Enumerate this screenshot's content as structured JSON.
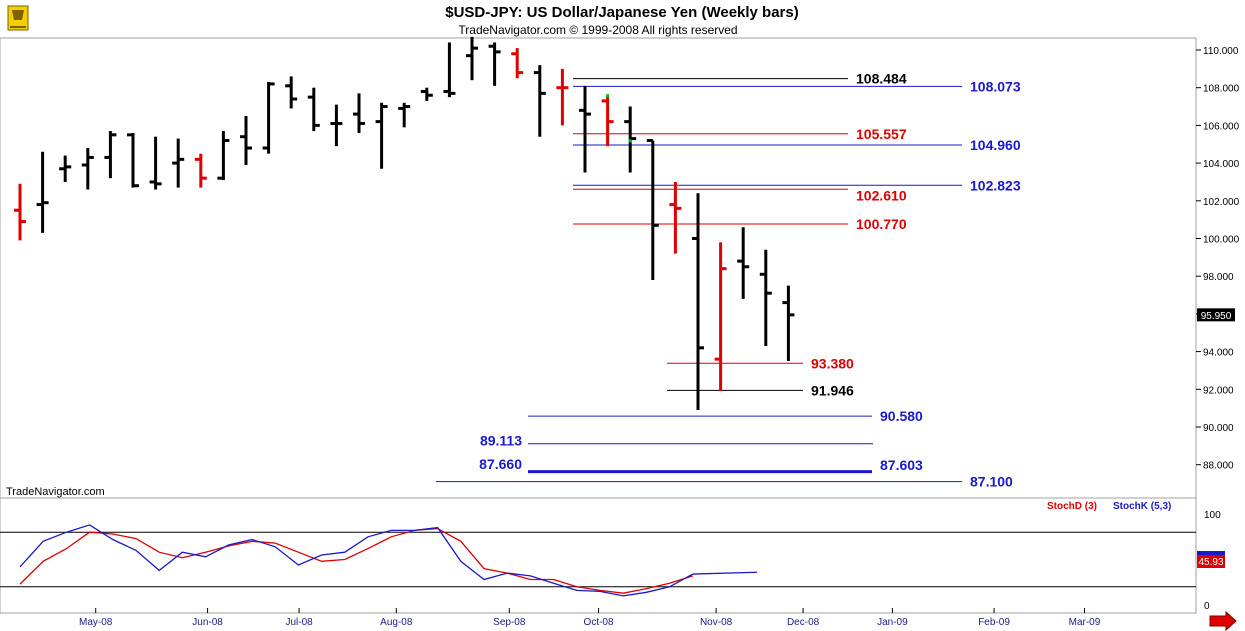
{
  "chart_data": [
    {
      "type": "ohlc",
      "title": "$USD-JPY:  US Dollar/Japanese Yen  (Weekly bars)",
      "subtitle": "TradeNavigator.com © 1999-2008 All rights reserved",
      "watermark": "TradeNavigator.com",
      "ylim": [
        86.0,
        110.8
      ],
      "yticks": [
        "110.000",
        "108.000",
        "106.000",
        "104.000",
        "102.000",
        "100.000",
        "98.000",
        "96.000",
        "94.000",
        "92.000",
        "90.000",
        "88.000"
      ],
      "last_price": "95.950",
      "xticks": [
        "May-08",
        "Jun-08",
        "Jul-08",
        "Aug-08",
        "Sep-08",
        "Oct-08",
        "Nov-08",
        "Dec-08",
        "Jan-09",
        "Feb-09",
        "Mar-09"
      ],
      "bars": [
        {
          "o": 101.5,
          "h": 102.9,
          "l": 99.9,
          "c": 100.9,
          "color": "red"
        },
        {
          "o": 101.8,
          "h": 104.6,
          "l": 100.3,
          "c": 101.9,
          "color": "black"
        },
        {
          "o": 103.7,
          "h": 104.4,
          "l": 103.0,
          "c": 103.8,
          "color": "black"
        },
        {
          "o": 103.9,
          "h": 104.8,
          "l": 102.6,
          "c": 104.3,
          "color": "black"
        },
        {
          "o": 104.3,
          "h": 105.7,
          "l": 103.2,
          "c": 105.5,
          "color": "black"
        },
        {
          "o": 105.5,
          "h": 105.6,
          "l": 102.7,
          "c": 102.8,
          "color": "black"
        },
        {
          "o": 103.0,
          "h": 105.4,
          "l": 102.6,
          "c": 102.9,
          "color": "black"
        },
        {
          "o": 104.0,
          "h": 105.3,
          "l": 102.7,
          "c": 104.2,
          "color": "black"
        },
        {
          "o": 104.2,
          "h": 104.5,
          "l": 102.7,
          "c": 103.2,
          "color": "red"
        },
        {
          "o": 103.2,
          "h": 105.7,
          "l": 103.1,
          "c": 105.2,
          "color": "black"
        },
        {
          "o": 105.4,
          "h": 106.5,
          "l": 103.9,
          "c": 104.8,
          "color": "black"
        },
        {
          "o": 104.8,
          "h": 108.3,
          "l": 104.5,
          "c": 108.2,
          "color": "black"
        },
        {
          "o": 108.1,
          "h": 108.6,
          "l": 106.9,
          "c": 107.4,
          "color": "black"
        },
        {
          "o": 107.5,
          "h": 108.0,
          "l": 105.7,
          "c": 106.0,
          "color": "black"
        },
        {
          "o": 106.1,
          "h": 107.1,
          "l": 104.9,
          "c": 106.1,
          "color": "black"
        },
        {
          "o": 106.6,
          "h": 107.7,
          "l": 105.6,
          "c": 106.1,
          "color": "black"
        },
        {
          "o": 106.2,
          "h": 107.2,
          "l": 103.7,
          "c": 107.0,
          "color": "black"
        },
        {
          "o": 106.9,
          "h": 107.2,
          "l": 105.9,
          "c": 107.0,
          "color": "black"
        },
        {
          "o": 107.8,
          "h": 108.0,
          "l": 107.3,
          "c": 107.6,
          "color": "black"
        },
        {
          "o": 107.8,
          "h": 110.4,
          "l": 107.5,
          "c": 107.7,
          "color": "black"
        },
        {
          "o": 109.7,
          "h": 110.7,
          "l": 108.4,
          "c": 110.1,
          "color": "black"
        },
        {
          "o": 110.2,
          "h": 110.4,
          "l": 108.1,
          "c": 109.9,
          "color": "black"
        },
        {
          "o": 109.8,
          "h": 110.1,
          "l": 108.5,
          "c": 108.8,
          "color": "red"
        },
        {
          "o": 108.8,
          "h": 109.2,
          "l": 105.4,
          "c": 107.7,
          "color": "black"
        },
        {
          "o": 108.0,
          "h": 109.0,
          "l": 106.0,
          "c": 108.0,
          "color": "red"
        },
        {
          "o": 106.8,
          "h": 108.1,
          "l": 103.5,
          "c": 106.6,
          "color": "black"
        },
        {
          "o": 107.3,
          "h": 107.5,
          "l": 104.9,
          "c": 106.2,
          "color": "red"
        },
        {
          "o": 106.2,
          "h": 107.0,
          "l": 103.5,
          "c": 105.3,
          "color": "black"
        },
        {
          "o": 105.2,
          "h": 105.2,
          "l": 97.8,
          "c": 100.7,
          "color": "black"
        },
        {
          "o": 101.8,
          "h": 103.0,
          "l": 99.2,
          "c": 101.6,
          "color": "red"
        },
        {
          "o": 100.0,
          "h": 102.4,
          "l": 90.9,
          "c": 94.2,
          "color": "black"
        },
        {
          "o": 93.6,
          "h": 99.8,
          "l": 91.9,
          "c": 98.4,
          "color": "red"
        },
        {
          "o": 98.8,
          "h": 100.6,
          "l": 96.8,
          "c": 98.5,
          "color": "black"
        },
        {
          "o": 98.1,
          "h": 99.4,
          "l": 94.3,
          "c": 97.1,
          "color": "black"
        },
        {
          "o": 96.6,
          "h": 97.5,
          "l": 93.5,
          "c": 95.95,
          "color": "black"
        }
      ],
      "levels": [
        {
          "label": "108.484",
          "value": 108.484,
          "x_from": "Sep-08",
          "x_to": "Nov-08",
          "label_at": "right-inside",
          "color": "#000000"
        },
        {
          "label": "108.073",
          "value": 108.073,
          "x_from": "Sep-08",
          "x_to": "Dec-08",
          "label_at": "right",
          "color": "#1a1acc"
        },
        {
          "label": "105.557",
          "value": 105.557,
          "x_from": "Sep-08",
          "x_to": "Nov-08",
          "label_at": "right-inside",
          "color": "#e00000"
        },
        {
          "label": "104.960",
          "value": 104.96,
          "x_from": "Sep-08",
          "x_to": "Dec-08",
          "label_at": "right",
          "color": "#1a1acc"
        },
        {
          "label": "102.610",
          "value": 102.61,
          "x_from": "Sep-08",
          "x_to": "Nov-08",
          "label_at": "right-inside",
          "color": "#e00000"
        },
        {
          "label": "102.823",
          "value": 102.823,
          "x_from": "Sep-08",
          "x_to": "Dec-08",
          "label_at": "right",
          "color": "#1a1acc"
        },
        {
          "label": "100.770",
          "value": 100.77,
          "x_from": "Sep-08",
          "x_to": "Nov-08",
          "label_at": "right-inside",
          "color": "#e00000"
        },
        {
          "label": "93.380",
          "value": 93.38,
          "x_from": "Oct-08",
          "x_to": "Nov-08",
          "label_at": "right",
          "color": "#e00000"
        },
        {
          "label": "91.946",
          "value": 91.946,
          "x_from": "Oct-08",
          "x_to": "Nov-08",
          "label_at": "right",
          "color": "#000000"
        },
        {
          "label": "90.580",
          "value": 90.58,
          "x_from": "Sep-08",
          "x_to": "Dec-08",
          "label_at": "right",
          "color": "#1a1acc"
        },
        {
          "label": "89.113",
          "value": 89.113,
          "x_from": "Sep-08",
          "x_to": "Dec-08",
          "label_at": "left",
          "color": "#1a1acc"
        },
        {
          "label": "87.660",
          "value": 87.66,
          "x_from": "Sep-08",
          "x_to": "Dec-08",
          "label_at": "left",
          "color": "#1a1acc"
        },
        {
          "label": "87.603",
          "value": 87.603,
          "x_from": "Sep-08",
          "x_to": "Dec-08",
          "label_at": "right",
          "color": "#1a1acc"
        },
        {
          "label": "87.100",
          "value": 87.1,
          "x_from": "Aug-08",
          "x_to": "Jan-09",
          "label_at": "right",
          "color": "#1a1acc"
        }
      ]
    },
    {
      "type": "line",
      "ylim": [
        0,
        100
      ],
      "yticks": [
        "100",
        "0"
      ],
      "reference_lines": [
        80,
        20
      ],
      "last_value": "45.93",
      "series": [
        {
          "name": "StochD (3)",
          "color": "#e00000",
          "values": [
            23,
            48,
            62,
            80,
            78,
            73,
            58,
            52,
            58,
            65,
            70,
            68,
            58,
            48,
            50,
            62,
            75,
            82,
            84,
            70,
            40,
            35,
            28,
            28,
            20,
            16,
            13,
            18,
            24,
            32
          ]
        },
        {
          "name": "StochK (5,3)",
          "color": "#1a1acc",
          "values": [
            42,
            70,
            80,
            88,
            72,
            60,
            38,
            58,
            53,
            66,
            72,
            64,
            44,
            55,
            58,
            75,
            82,
            82,
            85,
            48,
            28,
            35,
            32,
            24,
            16,
            15,
            10,
            14,
            20,
            34
          ]
        }
      ]
    }
  ]
}
